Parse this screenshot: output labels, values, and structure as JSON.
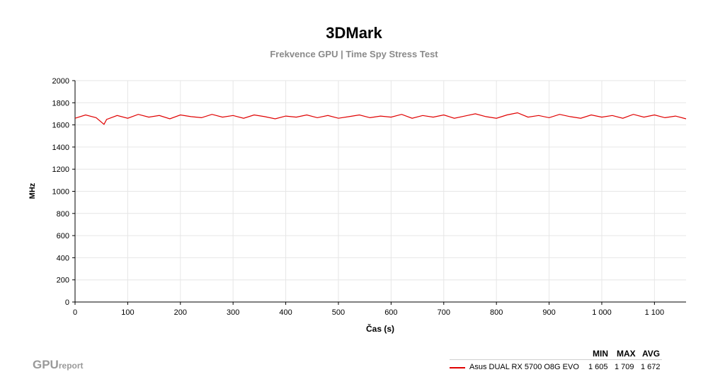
{
  "chart_data": {
    "type": "line",
    "title": "3DMark",
    "subtitle": "Frekvence GPU | Time Spy Stress Test",
    "xlabel": "Čas (s)",
    "ylabel": "MHz",
    "xlim": [
      0,
      1160
    ],
    "ylim": [
      0,
      2000
    ],
    "x_ticks": [
      0,
      100,
      200,
      300,
      400,
      500,
      600,
      700,
      800,
      900,
      1000,
      1100
    ],
    "x_tick_labels": [
      "0",
      "100",
      "200",
      "300",
      "400",
      "500",
      "600",
      "700",
      "800",
      "900",
      "1 000",
      "1 100"
    ],
    "y_ticks": [
      0,
      200,
      400,
      600,
      800,
      1000,
      1200,
      1400,
      1600,
      1800,
      2000
    ],
    "y_tick_labels": [
      "0",
      "200",
      "400",
      "600",
      "800",
      "1000",
      "1200",
      "1400",
      "1600",
      "1800",
      "2000"
    ],
    "grid": true,
    "legend_position": "bottom-right",
    "series": [
      {
        "name": "Asus DUAL RX 5700 O8G EVO",
        "color": "#e00000",
        "x": [
          0,
          20,
          40,
          55,
          60,
          80,
          100,
          120,
          140,
          160,
          180,
          200,
          220,
          240,
          260,
          280,
          300,
          320,
          340,
          360,
          380,
          400,
          420,
          440,
          460,
          480,
          500,
          520,
          540,
          560,
          580,
          600,
          620,
          640,
          660,
          680,
          700,
          720,
          740,
          760,
          780,
          800,
          820,
          840,
          860,
          880,
          900,
          920,
          940,
          960,
          980,
          1000,
          1020,
          1040,
          1060,
          1080,
          1100,
          1120,
          1140,
          1160
        ],
        "values": [
          1660,
          1690,
          1665,
          1605,
          1650,
          1685,
          1660,
          1695,
          1670,
          1685,
          1655,
          1690,
          1675,
          1665,
          1695,
          1670,
          1685,
          1660,
          1690,
          1675,
          1655,
          1680,
          1670,
          1690,
          1665,
          1685,
          1660,
          1675,
          1690,
          1665,
          1680,
          1670,
          1695,
          1660,
          1685,
          1670,
          1690,
          1660,
          1680,
          1700,
          1675,
          1660,
          1690,
          1709,
          1670,
          1685,
          1665,
          1695,
          1675,
          1660,
          1690,
          1670,
          1685,
          1660,
          1695,
          1670,
          1690,
          1665,
          1680,
          1655
        ]
      }
    ],
    "stats_headers": [
      "MIN",
      "MAX",
      "AVG"
    ],
    "stats": {
      "min": "1 605",
      "max": "1 709",
      "avg": "1 672"
    }
  },
  "branding": {
    "logo_main": "GPU",
    "logo_sub": "report"
  }
}
